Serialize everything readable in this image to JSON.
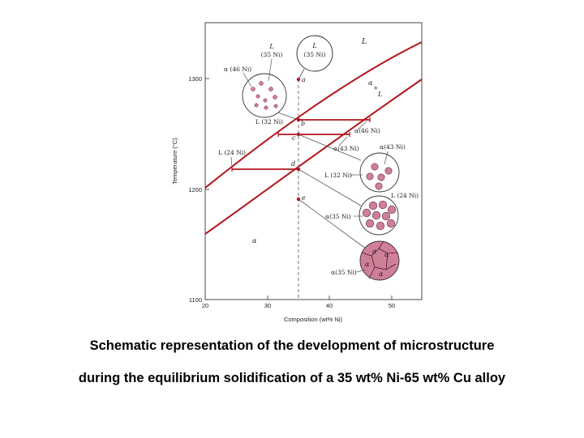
{
  "axes": {
    "xlabel": "Composition (wt% Ni)",
    "ylabel": "Temperature (°C)",
    "xticks": [
      "20",
      "30",
      "40",
      "50"
    ],
    "yticks": [
      "1300",
      "1200",
      "1100"
    ]
  },
  "regions": {
    "liquid": "L",
    "two_phase_alpha": "α",
    "two_phase_plus": "+",
    "two_phase_L": "L",
    "solid": "α"
  },
  "points": {
    "a": "a",
    "b": "b",
    "c": "c",
    "d": "d",
    "e": "e"
  },
  "tie_line_labels": {
    "L32": "L (32 Ni)",
    "a43": "α(43 Ni)",
    "a46": "α(46 Ni)",
    "L24": "L (24 Ni)"
  },
  "micro_labels": {
    "c1_L": "L",
    "c1_L_comp": "(35 Ni)",
    "c2_L": "L",
    "c2_L_comp": "(35 Ni)",
    "c2_a": "α (46 Ni)",
    "c3_a": "α(43 Ni)",
    "c3_L": "L (32 Ni)",
    "c4_L": "L (24 Ni)",
    "c4_a": "α(35 Ni)",
    "c5_a": "α(35 Ni)",
    "grain_alpha": "α"
  },
  "colors": {
    "boundary": "#b3141c",
    "alpha_fill": "#cf7f97",
    "frame": "#333333"
  },
  "caption": {
    "line1": "Schematic representation of the development of microstructure",
    "line2": "during the equilibrium solidification of a 35 wt% Ni-65 wt% Cu alloy"
  }
}
